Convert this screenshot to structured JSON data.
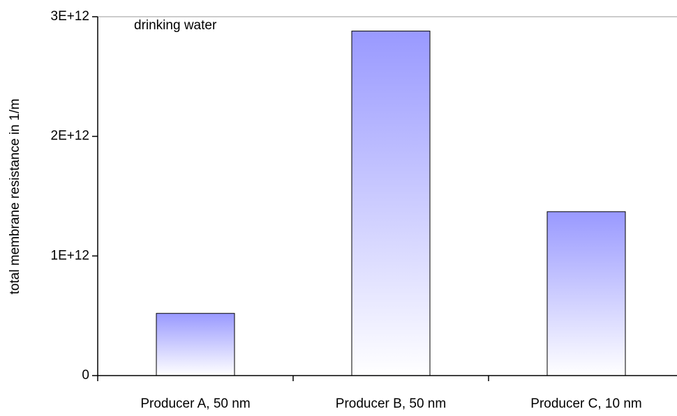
{
  "chart_data": {
    "type": "bar",
    "y_label": "total membrane resistance in 1/m",
    "annotation": "drinking water",
    "categories": [
      "Producer A, 50 nm",
      "Producer B, 50 nm",
      "Producer C, 10 nm"
    ],
    "values": [
      520000000000,
      2880000000000,
      1370000000000
    ],
    "color": "#9999ff",
    "ylim": [
      0,
      3000000000000
    ],
    "yticks": [
      0,
      {
        "value": 1000000000000,
        "label": "1E+12"
      },
      {
        "value": 2000000000000,
        "label": "2E+12"
      },
      {
        "value": 3000000000000,
        "label": "3E+12"
      }
    ],
    "grid": false
  }
}
